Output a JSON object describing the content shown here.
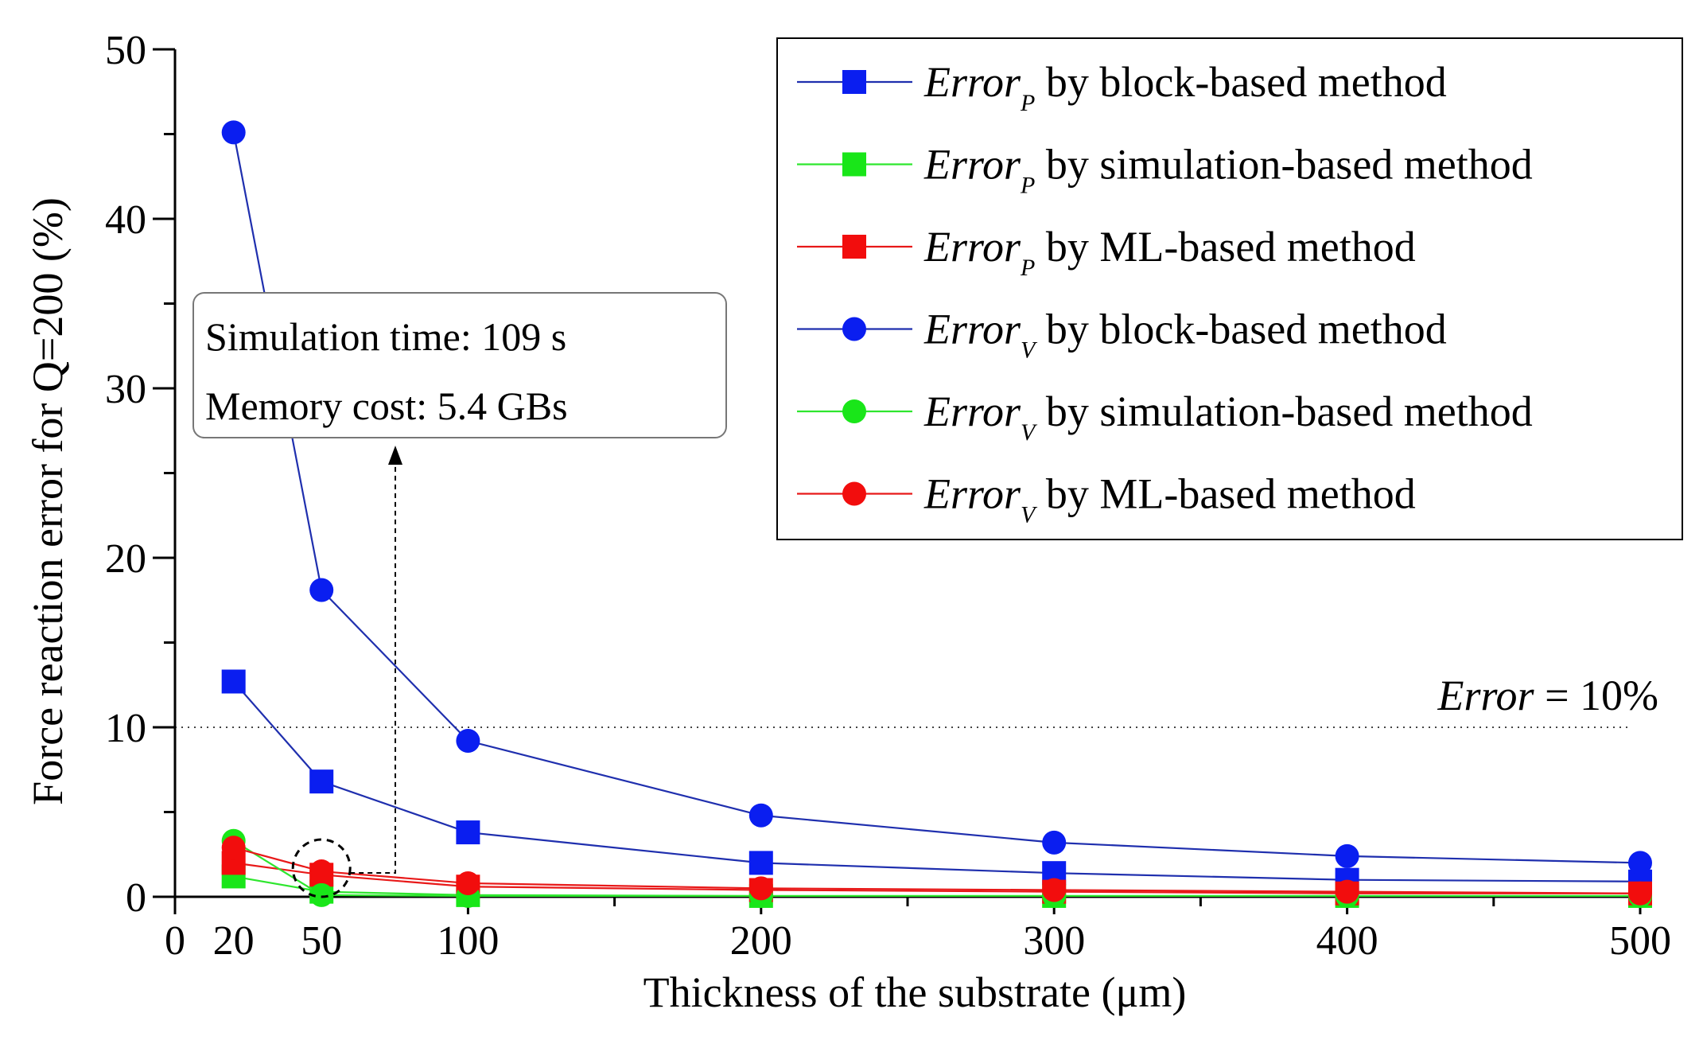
{
  "chart_data": {
    "type": "line",
    "xlabel": "Thickness of the substrate (μm)",
    "ylabel": "Force reaction error for Q=200 (%)",
    "xlim": [
      0,
      500
    ],
    "ylim": [
      0,
      50
    ],
    "x_ticks": [
      0,
      20,
      50,
      100,
      200,
      300,
      400,
      500
    ],
    "y_ticks": [
      0,
      10,
      20,
      30,
      40,
      50
    ],
    "x": [
      20,
      50,
      100,
      200,
      300,
      400,
      500
    ],
    "series": [
      {
        "name_var": "Error",
        "name_sub": "P",
        "name_rest": " by block-based method",
        "marker": "square",
        "line_color": "#1f2fae",
        "marker_color": "#0a1ef0",
        "values": [
          12.7,
          6.8,
          3.8,
          2.0,
          1.4,
          1.0,
          0.9
        ]
      },
      {
        "name_var": "Error",
        "name_sub": "P",
        "name_rest": " by simulation-based method",
        "marker": "square",
        "line_color": "#2ee62e",
        "marker_color": "#19e619",
        "values": [
          1.2,
          0.3,
          0.1,
          0.05,
          0.05,
          0.05,
          0.05
        ]
      },
      {
        "name_var": "Error",
        "name_sub": "P",
        "name_rest": " by ML-based method",
        "marker": "square",
        "line_color": "#e81919",
        "marker_color": "#f20d0d",
        "values": [
          2.0,
          1.3,
          0.6,
          0.4,
          0.3,
          0.2,
          0.2
        ]
      },
      {
        "name_var": "Error",
        "name_sub": "V",
        "name_rest": " by block-based method",
        "marker": "circle",
        "line_color": "#1f2fae",
        "marker_color": "#0a1ef0",
        "values": [
          45.1,
          18.1,
          9.2,
          4.8,
          3.2,
          2.4,
          2.0
        ]
      },
      {
        "name_var": "Error",
        "name_sub": "V",
        "name_rest": " by simulation-based method",
        "marker": "circle",
        "line_color": "#2ee62e",
        "marker_color": "#19e619",
        "values": [
          3.3,
          0.1,
          0.05,
          0.05,
          0.05,
          0.05,
          0.05
        ]
      },
      {
        "name_var": "Error",
        "name_sub": "V",
        "name_rest": " by ML-based method",
        "marker": "circle",
        "line_color": "#e81919",
        "marker_color": "#f20d0d",
        "values": [
          2.9,
          1.5,
          0.8,
          0.5,
          0.4,
          0.3,
          0.2
        ]
      }
    ],
    "reference_line": {
      "y": 10,
      "label_var": "Error",
      "label_rest": " = 10%"
    },
    "annotation": {
      "lines": [
        "Simulation time: 109 s",
        "Memory cost: 5.4 GBs"
      ],
      "target_x": 50,
      "target_y": 1.5
    },
    "legend": {
      "placement": "top-right"
    }
  }
}
